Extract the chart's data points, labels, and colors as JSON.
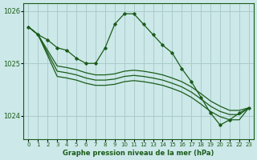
{
  "background_color": "#cce8e8",
  "grid_color": "#aacccc",
  "line_color": "#1a5c1a",
  "title": "Graphe pression niveau de la mer (hPa)",
  "ylim": [
    1023.55,
    1026.15
  ],
  "xlim": [
    -0.5,
    23.5
  ],
  "yticks": [
    1024,
    1025,
    1026
  ],
  "xticks": [
    0,
    1,
    2,
    3,
    4,
    5,
    6,
    7,
    8,
    9,
    10,
    11,
    12,
    13,
    14,
    15,
    16,
    17,
    18,
    19,
    20,
    21,
    22,
    23
  ],
  "series": [
    {
      "x": [
        0,
        1,
        2,
        3,
        4,
        5,
        6,
        7,
        8,
        9,
        10,
        11,
        12,
        13,
        14,
        15,
        16,
        17,
        18,
        19,
        20,
        21,
        22,
        23
      ],
      "y": [
        1025.7,
        1025.55,
        1025.45,
        1025.3,
        1025.25,
        1025.1,
        1025.0,
        1025.0,
        1025.3,
        1025.75,
        1025.95,
        1025.95,
        1025.75,
        1025.55,
        1025.35,
        1025.2,
        1024.9,
        1024.65,
        1024.35,
        1024.05,
        1023.82,
        1023.92,
        1024.05,
        1024.15
      ],
      "marker": true
    },
    {
      "x": [
        0,
        1,
        3,
        4,
        5,
        6,
        7,
        8,
        9,
        10,
        11,
        12,
        13,
        14,
        15,
        16,
        17,
        18,
        19,
        20,
        21,
        22,
        23
      ],
      "y": [
        1025.7,
        1025.55,
        1024.95,
        1024.92,
        1024.88,
        1024.82,
        1024.78,
        1024.78,
        1024.8,
        1024.85,
        1024.87,
        1024.85,
        1024.82,
        1024.78,
        1024.72,
        1024.65,
        1024.55,
        1024.42,
        1024.28,
        1024.18,
        1024.1,
        1024.1,
        1024.15
      ],
      "marker": false
    },
    {
      "x": [
        0,
        1,
        3,
        4,
        5,
        6,
        7,
        8,
        9,
        10,
        11,
        12,
        13,
        14,
        15,
        16,
        17,
        18,
        19,
        20,
        21,
        22,
        23
      ],
      "y": [
        1025.7,
        1025.55,
        1024.85,
        1024.82,
        1024.78,
        1024.72,
        1024.68,
        1024.68,
        1024.7,
        1024.75,
        1024.77,
        1024.75,
        1024.72,
        1024.68,
        1024.62,
        1024.55,
        1024.45,
        1024.32,
        1024.18,
        1024.08,
        1024.02,
        1024.02,
        1024.15
      ],
      "marker": false
    },
    {
      "x": [
        0,
        1,
        3,
        4,
        5,
        6,
        7,
        8,
        9,
        10,
        11,
        12,
        13,
        14,
        15,
        16,
        17,
        18,
        19,
        20,
        21,
        22,
        23
      ],
      "y": [
        1025.7,
        1025.55,
        1024.75,
        1024.72,
        1024.68,
        1024.62,
        1024.58,
        1024.58,
        1024.6,
        1024.65,
        1024.67,
        1024.65,
        1024.62,
        1024.58,
        1024.52,
        1024.45,
        1024.35,
        1024.22,
        1024.08,
        1023.98,
        1023.92,
        1023.92,
        1024.15
      ],
      "marker": false
    }
  ]
}
